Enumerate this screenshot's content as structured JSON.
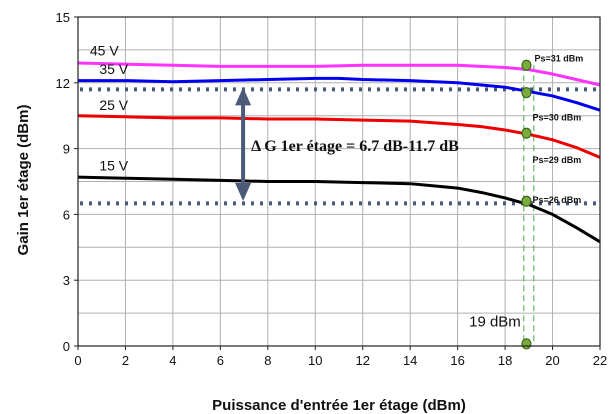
{
  "chart_data": {
    "type": "line",
    "title": "",
    "xlabel": "Puissance d'entrée 1er étage (dBm)",
    "ylabel": "Gain 1er étage (dBm)",
    "xlim": [
      0,
      22
    ],
    "ylim": [
      0,
      15
    ],
    "xticks": [
      0,
      2,
      4,
      6,
      8,
      10,
      12,
      14,
      16,
      18,
      20,
      22
    ],
    "yticks": [
      0,
      3,
      6,
      9,
      12,
      15
    ],
    "grid": true,
    "series": [
      {
        "name": "45 V",
        "color": "#ff33ff",
        "x": [
          0,
          2,
          4,
          6,
          8,
          10,
          12,
          14,
          16,
          17,
          18,
          19,
          20,
          21,
          22
        ],
        "y": [
          12.9,
          12.85,
          12.8,
          12.75,
          12.75,
          12.75,
          12.8,
          12.8,
          12.8,
          12.75,
          12.7,
          12.6,
          12.4,
          12.15,
          11.9
        ]
      },
      {
        "name": "35 V",
        "color": "#0000ee",
        "x": [
          0,
          2,
          4,
          6,
          8,
          10,
          11,
          12,
          14,
          16,
          17,
          18,
          19,
          20,
          21,
          22
        ],
        "y": [
          12.1,
          12.1,
          12.05,
          12.1,
          12.15,
          12.2,
          12.2,
          12.15,
          12.1,
          12.0,
          11.9,
          11.8,
          11.6,
          11.4,
          11.1,
          10.75
        ]
      },
      {
        "name": "25 V",
        "color": "#ee0000",
        "x": [
          0,
          2,
          4,
          6,
          8,
          10,
          12,
          14,
          16,
          17,
          18,
          19,
          20,
          21,
          22
        ],
        "y": [
          10.5,
          10.45,
          10.4,
          10.4,
          10.35,
          10.35,
          10.3,
          10.25,
          10.1,
          10.0,
          9.85,
          9.65,
          9.4,
          9.05,
          8.6
        ]
      },
      {
        "name": "15 V",
        "color": "#000000",
        "x": [
          0,
          2,
          4,
          6,
          8,
          10,
          12,
          14,
          15,
          16,
          17,
          18,
          19,
          20,
          21,
          22
        ],
        "y": [
          7.7,
          7.65,
          7.6,
          7.55,
          7.5,
          7.5,
          7.45,
          7.4,
          7.3,
          7.2,
          7.0,
          6.75,
          6.45,
          6.0,
          5.4,
          4.75
        ]
      }
    ],
    "reference_lines": [
      {
        "y": 11.7,
        "style": "dotted",
        "color": "#4a5a78"
      },
      {
        "y": 6.5,
        "style": "dotted",
        "color": "#4a5a78"
      }
    ],
    "vertical_marker": {
      "x": 19,
      "color": "#44aa44",
      "style": "dashed",
      "label": "19 dBm"
    },
    "points": [
      {
        "x": 18.9,
        "y": 12.8,
        "label": "Ps=31 dBm"
      },
      {
        "x": 18.9,
        "y": 11.55,
        "label": "Ps=30 dBm"
      },
      {
        "x": 18.9,
        "y": 9.7,
        "label": "Ps=29 dBm"
      },
      {
        "x": 18.9,
        "y": 6.6,
        "label": "Ps=26 dBm"
      },
      {
        "x": 18.9,
        "y": 0.1,
        "label": ""
      }
    ],
    "annotation": {
      "text": "Δ G 1er étage = 6.7 dB-11.7 dB",
      "from": 6.7,
      "to": 11.7,
      "x": 7
    },
    "colors": {
      "grid": "#b0b0b0",
      "arrow": "#4a5a78",
      "point_fill": "#7aab3c",
      "point_stroke": "#3a6a1a"
    }
  }
}
